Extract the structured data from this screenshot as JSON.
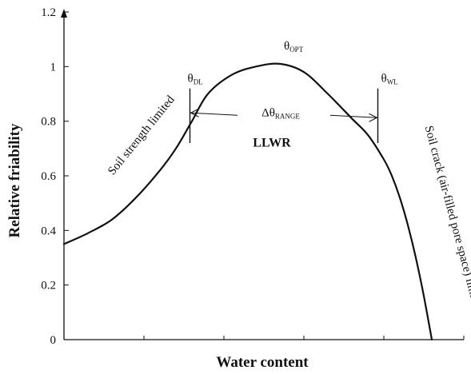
{
  "chart_data": {
    "type": "line",
    "xlabel": "Water content",
    "ylabel": "Relative friability",
    "xlim": [
      0,
      100
    ],
    "ylim": [
      0,
      1.2
    ],
    "x_ticks": [
      0,
      20,
      40,
      60,
      80,
      100
    ],
    "y_ticks": [
      {
        "value": 0,
        "label": "0"
      },
      {
        "value": 0.2,
        "label": "0.2"
      },
      {
        "value": 0.4,
        "label": "0.4"
      },
      {
        "value": 0.6,
        "label": "0.6"
      },
      {
        "value": 0.8,
        "label": "0.8"
      },
      {
        "value": 1,
        "label": "1"
      },
      {
        "value": 1.2,
        "label": "1.2"
      }
    ],
    "series": [
      {
        "x": [
          0,
          6,
          12,
          18,
          24,
          28,
          32,
          36,
          42,
          48,
          54,
          60,
          66,
          72,
          76,
          80,
          82,
          84,
          86,
          88,
          90,
          92
        ],
        "y": [
          0.35,
          0.39,
          0.44,
          0.52,
          0.62,
          0.7,
          0.8,
          0.9,
          0.97,
          1.0,
          1.01,
          0.98,
          0.9,
          0.81,
          0.75,
          0.66,
          0.6,
          0.52,
          0.42,
          0.3,
          0.16,
          0.0
        ]
      }
    ],
    "markers": [
      {
        "x": 31.5,
        "y_min": 0.72,
        "y_max": 0.92,
        "label": "θ",
        "subscript": "DL"
      },
      {
        "x": 78.5,
        "y_min": 0.72,
        "y_max": 0.92,
        "label": "θ",
        "subscript": "WL"
      },
      {
        "x": 59,
        "y": 1.01,
        "label": "θ",
        "subscript": "OPT"
      }
    ],
    "range": {
      "x_start": 31.5,
      "x_end": 78.5,
      "y": 0.81,
      "label": "Δθ",
      "subscript": "RANGE",
      "region_label": "LLWR"
    },
    "annotations": [
      {
        "text": "Soil strength limited",
        "x": 20,
        "y": 0.74
      },
      {
        "text": "Soil crack (air-filled pore space) limited",
        "x": 96.5,
        "y": 0.44
      }
    ]
  }
}
